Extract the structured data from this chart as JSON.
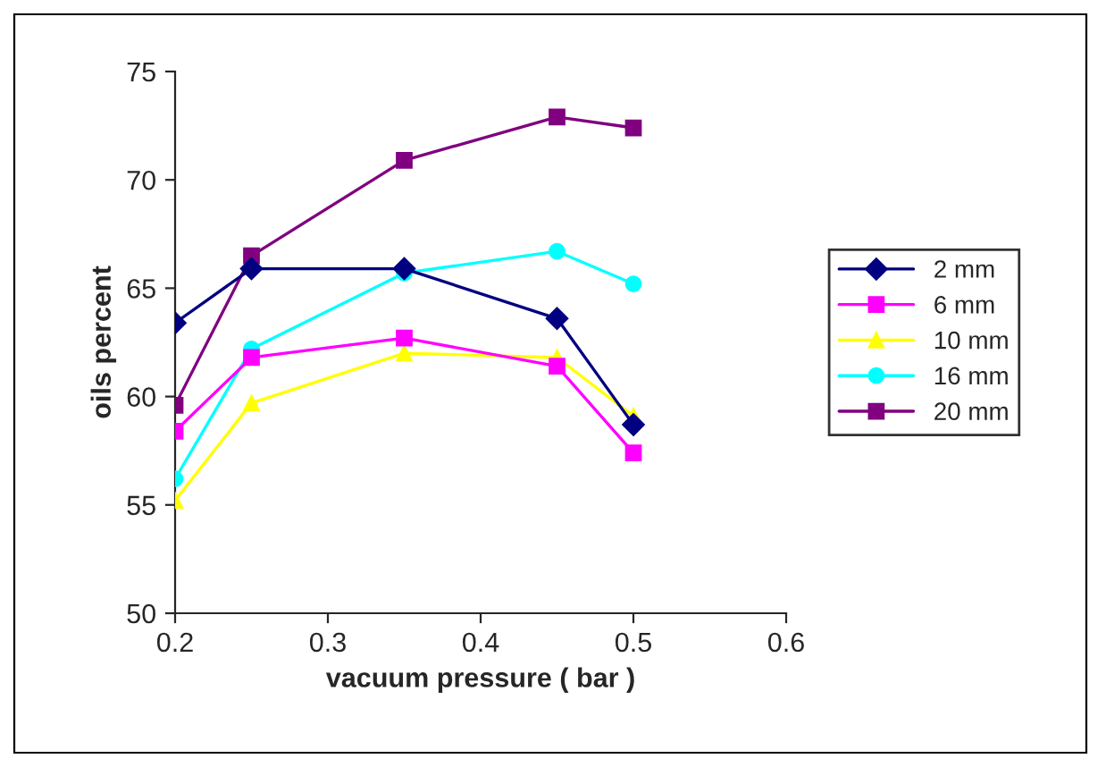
{
  "chart_data": {
    "type": "line",
    "xlabel": "vacuum pressure ( bar )",
    "ylabel": "oils percent",
    "x": [
      0.2,
      0.25,
      0.35,
      0.45,
      0.5
    ],
    "xlim": [
      0.2,
      0.6
    ],
    "xticks": [
      0.2,
      0.3,
      0.4,
      0.5,
      0.6
    ],
    "ylim": [
      50,
      75
    ],
    "yticks": [
      50,
      55,
      60,
      65,
      70,
      75
    ],
    "grid": false,
    "legend": "right",
    "line_style": "solid",
    "series": [
      {
        "name": "2 mm",
        "color": "#000080",
        "marker": "diamond",
        "values": [
          63.4,
          65.9,
          65.9,
          63.6,
          58.7
        ]
      },
      {
        "name": "6 mm",
        "color": "#ff00ff",
        "marker": "square",
        "values": [
          58.4,
          61.8,
          62.7,
          61.4,
          57.4
        ]
      },
      {
        "name": "10 mm",
        "color": "#ffff00",
        "marker": "triangle",
        "values": [
          55.2,
          59.7,
          62.0,
          61.8,
          59.1
        ]
      },
      {
        "name": "16 mm",
        "color": "#00ffff",
        "marker": "circle",
        "values": [
          56.2,
          62.2,
          65.7,
          66.7,
          65.2
        ]
      },
      {
        "name": "20 mm",
        "color": "#800080",
        "marker": "square",
        "values": [
          59.6,
          66.5,
          70.9,
          72.9,
          72.4
        ]
      }
    ]
  }
}
